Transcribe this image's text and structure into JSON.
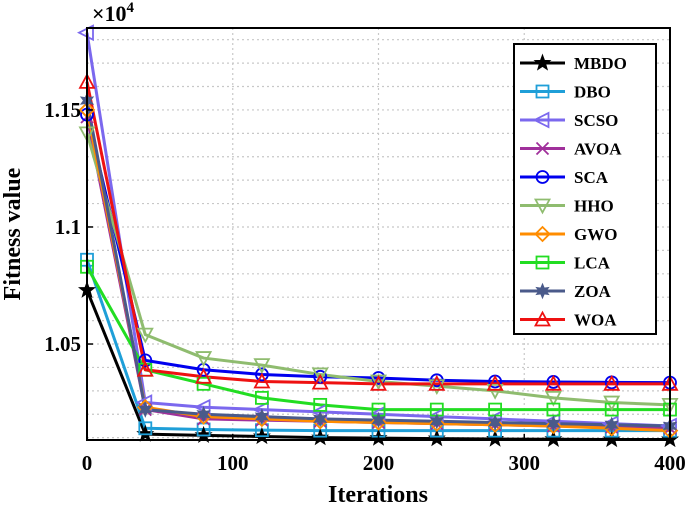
{
  "chart_data": {
    "type": "line",
    "xlabel": "Iterations",
    "ylabel": "Fitness value",
    "y_exponent_label": "×10",
    "y_exponent": "4",
    "y_multiplier": 10000,
    "xlim": [
      0,
      400
    ],
    "ylim": [
      10090,
      11850
    ],
    "xticks": [
      0,
      100,
      200,
      300,
      400
    ],
    "xtick_labels": [
      "0",
      "100",
      "200",
      "300",
      "400"
    ],
    "yticks": [
      10500,
      11000,
      11500
    ],
    "ytick_labels": [
      "1.05",
      "1.1",
      "1.15"
    ],
    "grid": true,
    "legend_position": "top-right",
    "x": [
      0,
      40,
      80,
      120,
      160,
      200,
      240,
      280,
      320,
      360,
      400
    ],
    "series": [
      {
        "name": "MBDO",
        "color": "#000000",
        "marker": "star5",
        "values": [
          10730,
          10115,
          10110,
          10105,
          10100,
          10098,
          10096,
          10094,
          10093,
          10092,
          10092
        ]
      },
      {
        "name": "DBO",
        "color": "#1f9fd8",
        "marker": "square",
        "values": [
          10860,
          10140,
          10135,
          10132,
          10130,
          10130,
          10130,
          10130,
          10130,
          10130,
          10130
        ]
      },
      {
        "name": "SCSO",
        "color": "#7b68ee",
        "marker": "triangle-left",
        "values": [
          11830,
          10250,
          10230,
          10220,
          10210,
          10200,
          10190,
          10180,
          10170,
          10160,
          10150
        ]
      },
      {
        "name": "AVOA",
        "color": "#a0309b",
        "marker": "x",
        "values": [
          11470,
          10220,
          10180,
          10175,
          10170,
          10165,
          10160,
          10155,
          10150,
          10145,
          10140
        ]
      },
      {
        "name": "SCA",
        "color": "#0000ee",
        "marker": "circle",
        "values": [
          11480,
          10430,
          10390,
          10370,
          10360,
          10355,
          10345,
          10340,
          10338,
          10336,
          10335
        ]
      },
      {
        "name": "HHO",
        "color": "#8fbc6f",
        "marker": "triangle-down",
        "values": [
          11400,
          10540,
          10440,
          10410,
          10370,
          10340,
          10320,
          10300,
          10270,
          10250,
          10240
        ]
      },
      {
        "name": "GWO",
        "color": "#ff8c00",
        "marker": "diamond",
        "values": [
          11500,
          10230,
          10190,
          10180,
          10170,
          10165,
          10160,
          10155,
          10150,
          10140,
          10130
        ]
      },
      {
        "name": "LCA",
        "color": "#22dd22",
        "marker": "square",
        "values": [
          10830,
          10390,
          10330,
          10270,
          10240,
          10220,
          10220,
          10220,
          10220,
          10220,
          10220
        ]
      },
      {
        "name": "ZOA",
        "color": "#4a5a8a",
        "marker": "star6",
        "values": [
          11540,
          10220,
          10200,
          10190,
          10180,
          10175,
          10170,
          10165,
          10160,
          10155,
          10150
        ]
      },
      {
        "name": "WOA",
        "color": "#ee1111",
        "marker": "triangle-up",
        "values": [
          11620,
          10390,
          10360,
          10340,
          10335,
          10330,
          10330,
          10330,
          10330,
          10330,
          10330
        ]
      }
    ]
  }
}
